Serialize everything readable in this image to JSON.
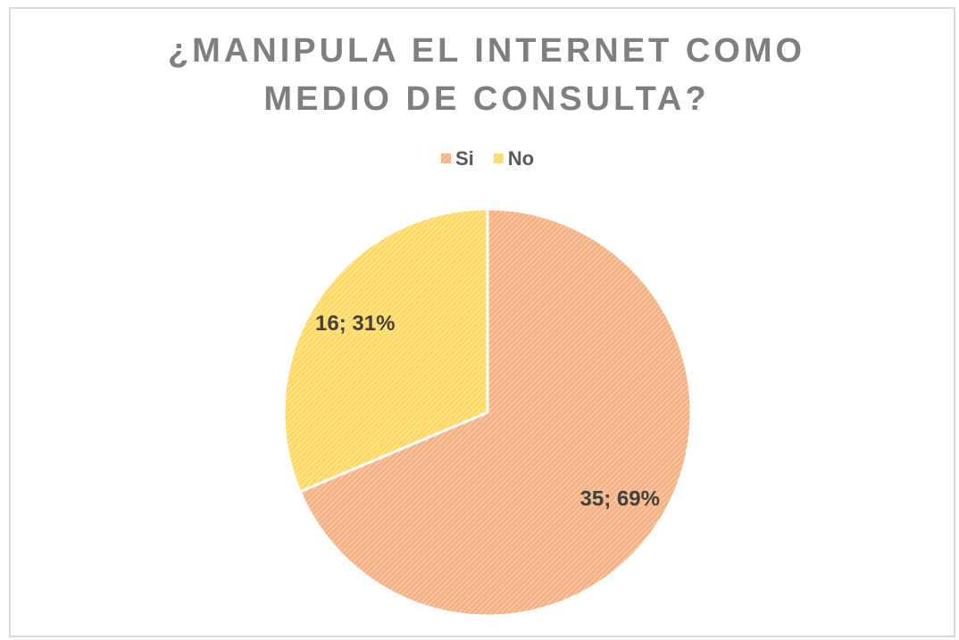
{
  "chart_data": {
    "type": "pie",
    "title": "¿MANIPULA EL INTERNET COMO MEDIO DE CONSULTA?",
    "categories": [
      "Si",
      "No"
    ],
    "values": [
      35,
      16
    ],
    "value_labels": [
      "35; 69%",
      "16; 31%"
    ],
    "colors": [
      "#f4b183",
      "#ffd966"
    ],
    "legend": "top"
  }
}
